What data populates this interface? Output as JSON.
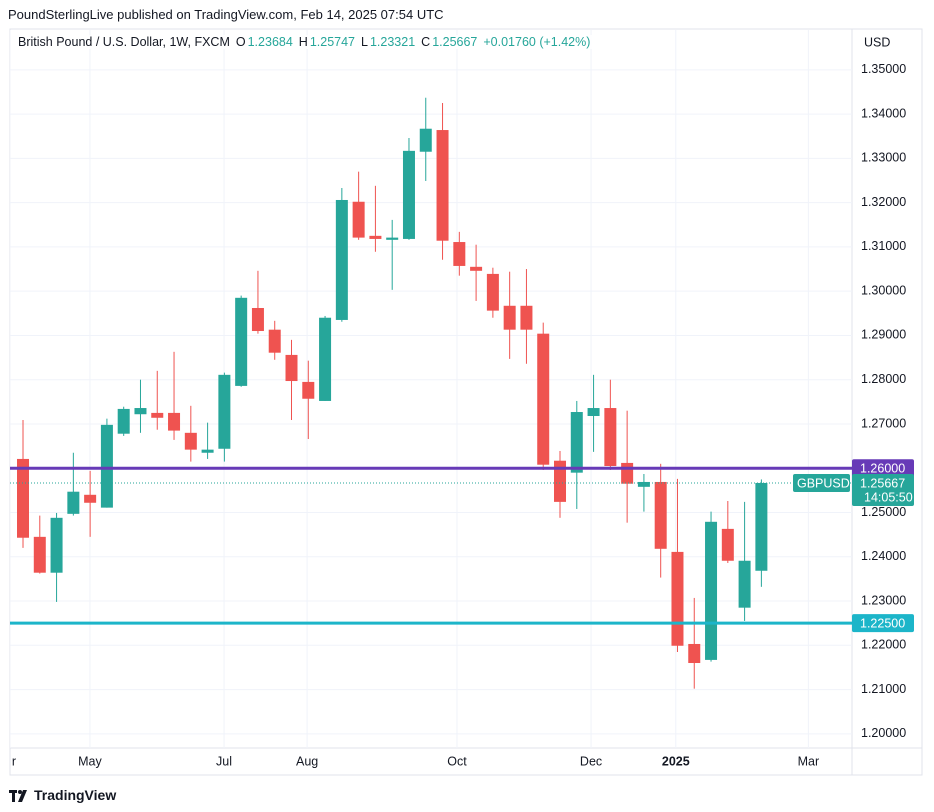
{
  "header": "PoundSterlingLive published on TradingView.com, Feb 14, 2025 07:54 UTC",
  "legend": {
    "symbol": "British Pound / U.S. Dollar, 1W, FXCM",
    "o_key": "O",
    "o": "1.23684",
    "h_key": "H",
    "h": "1.25747",
    "l_key": "L",
    "l": "1.23321",
    "c_key": "C",
    "c": "1.25667",
    "change": "+0.01760 (+1.42%)"
  },
  "footer": "TradingView",
  "chart_data": {
    "type": "candlestick",
    "currency": "USD",
    "up_color": "#26a69a",
    "down_color": "#ef5350",
    "categories": [
      null,
      null,
      null,
      null,
      null,
      null,
      null,
      null,
      null,
      null,
      null,
      null,
      null,
      null,
      null,
      null,
      null,
      null,
      null,
      null,
      null,
      null,
      null,
      null,
      null,
      null,
      null,
      null,
      null,
      null,
      null,
      null,
      null,
      null,
      null,
      null,
      null,
      null,
      null,
      null,
      null,
      null,
      null,
      null,
      null
    ],
    "open": [
      1.2621,
      1.2445,
      1.2364,
      1.2497,
      1.254,
      1.2511,
      1.2678,
      1.2722,
      1.2725,
      1.2725,
      1.268,
      1.2635,
      1.2644,
      1.2786,
      1.2962,
      1.2913,
      1.2856,
      1.2795,
      1.2752,
      1.2935,
      1.3202,
      1.3125,
      1.3116,
      1.3118,
      1.3315,
      1.3364,
      1.3111,
      1.3055,
      1.3039,
      1.2967,
      1.2967,
      1.2904,
      1.2617,
      1.259,
      1.2718,
      1.2736,
      1.2612,
      1.2558,
      1.2569,
      1.2411,
      1.2203,
      1.2167,
      1.2463,
      1.2285,
      1.23684
    ],
    "high": [
      1.2709,
      1.2493,
      1.2499,
      1.2635,
      1.2594,
      1.2712,
      1.2739,
      1.28,
      1.282,
      1.2863,
      1.2741,
      1.2703,
      1.2816,
      1.299,
      1.3046,
      1.2933,
      1.289,
      1.2843,
      1.2944,
      1.3233,
      1.327,
      1.3238,
      1.3161,
      1.3346,
      1.3437,
      1.3425,
      1.3134,
      1.3105,
      1.3053,
      1.3044,
      1.305,
      1.2929,
      1.2639,
      1.2752,
      1.2811,
      1.28,
      1.273,
      1.2587,
      1.261,
      1.2576,
      1.2307,
      1.2502,
      1.2526,
      1.2524,
      1.25747
    ],
    "low": [
      1.242,
      1.2362,
      1.2298,
      1.2493,
      1.2445,
      1.2511,
      1.2673,
      1.268,
      1.2687,
      1.2664,
      1.2615,
      1.2621,
      1.2615,
      1.2784,
      1.2904,
      1.2845,
      1.2709,
      1.2666,
      1.2752,
      1.2931,
      1.3116,
      1.3089,
      1.3003,
      1.3116,
      1.3249,
      1.3071,
      1.3035,
      1.2978,
      1.294,
      1.2847,
      1.2836,
      1.2596,
      1.2488,
      1.2508,
      1.2637,
      1.2596,
      1.2477,
      1.2502,
      1.2353,
      1.2185,
      1.2102,
      1.2163,
      1.2386,
      1.2255,
      1.23321
    ],
    "close": [
      1.2443,
      1.2364,
      1.2488,
      1.2547,
      1.2522,
      1.2698,
      1.2734,
      1.2736,
      1.2714,
      1.2685,
      1.2642,
      1.2642,
      1.2811,
      1.2985,
      1.291,
      1.2861,
      1.2797,
      1.2757,
      1.294,
      1.3206,
      1.3121,
      1.3118,
      1.3121,
      1.3317,
      1.3367,
      1.3114,
      1.3057,
      1.3046,
      1.2956,
      1.2913,
      1.2913,
      1.2608,
      1.2524,
      1.2727,
      1.2736,
      1.2605,
      1.2565,
      1.2569,
      1.2418,
      1.2199,
      1.216,
      1.2479,
      1.2391,
      1.2391,
      1.25667
    ],
    "xlim": [
      -0.775,
      49.4
    ],
    "xticks": [
      {
        "value": -0.775,
        "label": "r"
      },
      {
        "value": 3.99,
        "label": "May"
      },
      {
        "value": 11.98,
        "label": "Jul"
      },
      {
        "value": 16.93,
        "label": "Aug"
      },
      {
        "value": 25.86,
        "label": "Oct"
      },
      {
        "value": 33.85,
        "label": "Dec"
      },
      {
        "value": 38.9,
        "label": "2025"
      },
      {
        "value": 46.8,
        "label": "Mar"
      }
    ],
    "bold_xtick": "2025",
    "ylim": [
      1.1968,
      1.359
    ],
    "yticks": [
      {
        "value": 1.2,
        "label": "1.20000"
      },
      {
        "value": 1.21,
        "label": "1.21000"
      },
      {
        "value": 1.22,
        "label": "1.22000"
      },
      {
        "value": 1.23,
        "label": "1.23000"
      },
      {
        "value": 1.24,
        "label": "1.24000"
      },
      {
        "value": 1.25,
        "label": "1.25000"
      },
      {
        "value": 1.26,
        "label": "1.26000"
      },
      {
        "value": 1.27,
        "label": "1.27000"
      },
      {
        "value": 1.28,
        "label": "1.28000"
      },
      {
        "value": 1.29,
        "label": "1.29000"
      },
      {
        "value": 1.3,
        "label": "1.30000"
      },
      {
        "value": 1.31,
        "label": "1.31000"
      },
      {
        "value": 1.32,
        "label": "1.32000"
      },
      {
        "value": 1.33,
        "label": "1.33000"
      },
      {
        "value": 1.34,
        "label": "1.34000"
      },
      {
        "value": 1.35,
        "label": "1.35000"
      }
    ],
    "grid": true,
    "hlines": [
      {
        "value": 1.26,
        "label": "1.26000",
        "color": "#673ab7"
      },
      {
        "value": 1.225,
        "label": "1.22500",
        "color": "#1cb5c9"
      }
    ],
    "last_price": {
      "value": 1.25667,
      "symbol": "GBPUSD",
      "countdown": "14:05:50",
      "color": "#26a69a"
    }
  }
}
